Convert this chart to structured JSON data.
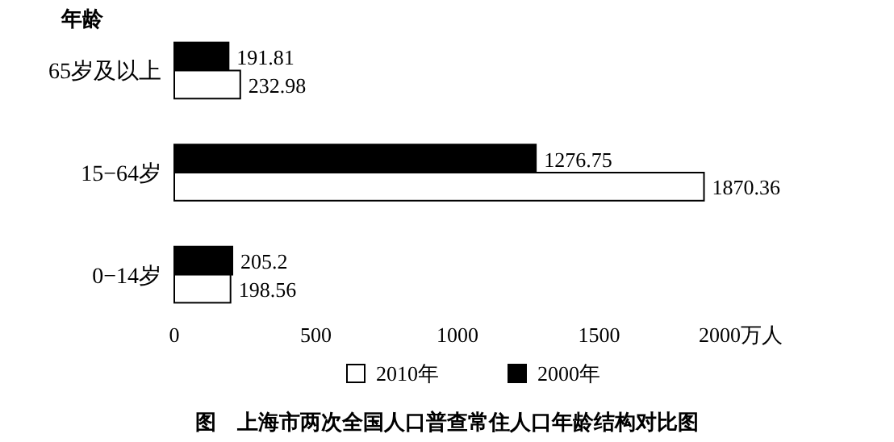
{
  "chart_data": {
    "type": "bar",
    "orientation": "horizontal",
    "title": "图　上海市两次全国人口普查常住人口年龄结构对比图",
    "ylabel": "年龄",
    "categories": [
      "65岁及以上",
      "15−64岁",
      "0−14岁"
    ],
    "series": [
      {
        "name": "2000年",
        "color": "#000000",
        "values": [
          191.81,
          1276.75,
          205.2
        ]
      },
      {
        "name": "2010年",
        "color": "#ffffff",
        "values": [
          232.98,
          1870.36,
          198.56
        ]
      }
    ],
    "xlim": [
      0,
      2000
    ],
    "xticks": [
      0,
      500,
      1000,
      1500,
      {
        "value": 2000,
        "label": "2000万人"
      }
    ],
    "data_labels": true,
    "legend": "bottom",
    "grid": false
  }
}
